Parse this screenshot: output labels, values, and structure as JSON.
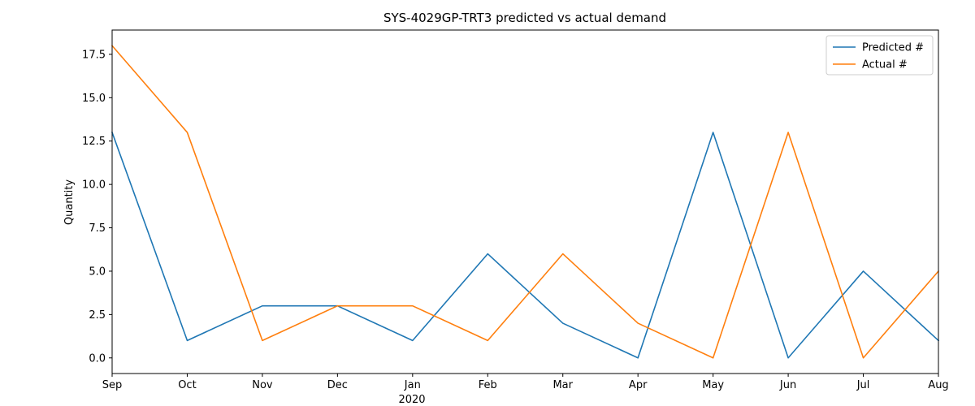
{
  "chart_data": {
    "type": "line",
    "title": "SYS-4029GP-TRT3 predicted vs actual demand",
    "xlabel": "",
    "ylabel": "Quantity",
    "x": [
      "2019-09",
      "2019-10",
      "2019-11",
      "2019-12",
      "2020-01",
      "2020-02",
      "2020-03",
      "2020-04",
      "2020-05",
      "2020-06",
      "2020-07",
      "2020-08"
    ],
    "x_tick_labels": [
      "Sep",
      "Oct",
      "Nov",
      "Dec",
      "Jan",
      "Feb",
      "Mar",
      "Apr",
      "May",
      "Jun",
      "Jul",
      "Aug"
    ],
    "x_year_label": "2020",
    "series": [
      {
        "name": "Predicted #",
        "color": "#1f77b4",
        "values": [
          13,
          1,
          3,
          3,
          1,
          6,
          2,
          0,
          13,
          0,
          5,
          1
        ]
      },
      {
        "name": "Actual #",
        "color": "#ff7f0e",
        "values": [
          18,
          13,
          1,
          3,
          3,
          1,
          6,
          2,
          0,
          13,
          0,
          5
        ]
      }
    ],
    "ylim": [
      -0.9,
      18.9
    ],
    "y_ticks": [
      "0.0",
      "2.5",
      "5.0",
      "7.5",
      "10.0",
      "12.5",
      "15.0",
      "17.5"
    ],
    "grid": false,
    "legend_position": "top-right"
  }
}
